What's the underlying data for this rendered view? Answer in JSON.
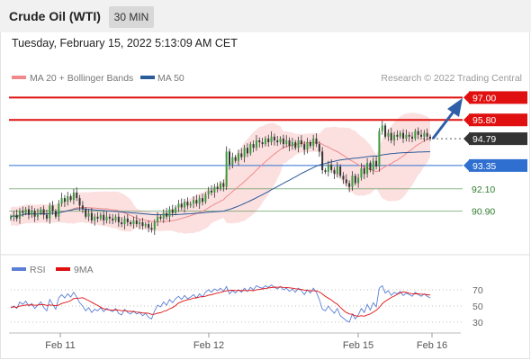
{
  "header": {
    "title": "Crude Oil (WTI)",
    "timeframe": "30 MIN"
  },
  "datetime": "Tuesday, February 15, 2022 5:13:09 AM CET",
  "legend": [
    {
      "label": "MA 20 + Bollinger Bands",
      "color": "#f08a8a"
    },
    {
      "label": "MA 50",
      "color": "#2c5b9a"
    }
  ],
  "watermark": "Research © 2022 Trading Central",
  "rsi_legend": [
    {
      "label": "RSI",
      "color": "#5b7fd6"
    },
    {
      "label": "9MA",
      "color": "#e01010"
    }
  ],
  "chart_data": {
    "type": "candlestick",
    "x_ticks": [
      "Feb 11",
      "Feb 12",
      "Feb 15",
      "Feb 16"
    ],
    "price_range": [
      88.8,
      97.6
    ],
    "last_price": 94.79,
    "levels": [
      {
        "value": 97.0,
        "label": "97.00",
        "kind": "resistance",
        "color": "#e01010"
      },
      {
        "value": 95.8,
        "label": "95.80",
        "kind": "resistance",
        "color": "#e01010"
      },
      {
        "value": 94.79,
        "label": "94.79",
        "kind": "last",
        "color": "#333333"
      },
      {
        "value": 93.35,
        "label": "93.35",
        "kind": "pivot",
        "color": "#2f6fd0"
      },
      {
        "value": 92.1,
        "label": "92.10",
        "kind": "support",
        "color": "#2f7f2f"
      },
      {
        "value": 90.9,
        "label": "90.90",
        "kind": "support",
        "color": "#2f7f2f"
      }
    ],
    "close": [
      90.6,
      90.7,
      90.5,
      90.9,
      90.8,
      91.0,
      90.7,
      90.9,
      90.6,
      90.8,
      91.0,
      90.7,
      90.5,
      91.2,
      90.9,
      90.6,
      91.3,
      91.6,
      91.4,
      91.7,
      91.5,
      91.9,
      91.6,
      91.2,
      91.0,
      90.6,
      90.8,
      90.4,
      90.6,
      90.5,
      90.7,
      90.4,
      90.6,
      90.5,
      90.4,
      90.6,
      90.3,
      90.2,
      90.5,
      90.3,
      90.2,
      90.4,
      90.2,
      90.3,
      90.1,
      90.2,
      90.0,
      89.9,
      90.3,
      90.6,
      90.5,
      90.8,
      90.6,
      91.0,
      90.8,
      91.1,
      91.3,
      91.1,
      91.4,
      91.2,
      91.3,
      91.5,
      91.3,
      91.6,
      91.4,
      91.8,
      92.0,
      91.9,
      92.2,
      92.1,
      92.4,
      92.2,
      94.1,
      93.4,
      93.8,
      93.6,
      94.0,
      93.8,
      94.3,
      94.0,
      94.5,
      94.3,
      94.7,
      94.6,
      94.5,
      94.8,
      94.6,
      94.9,
      94.7,
      94.6,
      94.8,
      94.5,
      94.7,
      94.4,
      94.6,
      94.3,
      94.7,
      94.5,
      94.2,
      94.6,
      94.4,
      94.8,
      94.5,
      94.1,
      93.1,
      93.0,
      93.4,
      93.1,
      92.9,
      93.3,
      92.8,
      92.6,
      92.4,
      92.2,
      92.8,
      92.4,
      92.7,
      93.2,
      92.9,
      93.5,
      93.1,
      93.6,
      93.3,
      95.2,
      95.5,
      94.9,
      95.1,
      94.7,
      95.0,
      94.9,
      95.1,
      94.8,
      95.0,
      94.9,
      94.8,
      95.2,
      95.0,
      94.9,
      95.1,
      94.9,
      94.79
    ],
    "open": [
      90.5,
      90.6,
      90.7,
      90.5,
      90.9,
      90.8,
      91.0,
      90.7,
      90.9,
      90.6,
      90.8,
      91.0,
      90.7,
      90.5,
      91.2,
      90.9,
      90.6,
      91.3,
      91.6,
      91.4,
      91.7,
      91.5,
      91.9,
      91.6,
      91.2,
      91.0,
      90.6,
      90.8,
      90.4,
      90.6,
      90.5,
      90.7,
      90.4,
      90.6,
      90.5,
      90.4,
      90.6,
      90.3,
      90.2,
      90.5,
      90.3,
      90.2,
      90.4,
      90.2,
      90.3,
      90.1,
      90.2,
      90.0,
      89.9,
      90.3,
      90.6,
      90.5,
      90.8,
      90.6,
      91.0,
      90.8,
      91.1,
      91.3,
      91.1,
      91.4,
      91.2,
      91.3,
      91.5,
      91.3,
      91.6,
      91.4,
      91.8,
      92.0,
      91.9,
      92.2,
      92.1,
      92.4,
      92.2,
      94.1,
      93.4,
      93.8,
      93.6,
      94.0,
      93.8,
      94.3,
      94.0,
      94.5,
      94.3,
      94.7,
      94.6,
      94.5,
      94.8,
      94.6,
      94.9,
      94.7,
      94.6,
      94.8,
      94.5,
      94.7,
      94.4,
      94.6,
      94.3,
      94.7,
      94.5,
      94.2,
      94.6,
      94.4,
      94.8,
      94.5,
      94.1,
      93.1,
      93.0,
      93.4,
      93.1,
      92.9,
      93.3,
      92.8,
      92.6,
      92.4,
      92.2,
      92.8,
      92.4,
      92.7,
      93.2,
      92.9,
      93.5,
      93.1,
      93.6,
      93.3,
      95.2,
      95.5,
      94.9,
      95.1,
      94.7,
      95.0,
      94.9,
      95.1,
      94.8,
      95.0,
      94.9,
      94.8,
      95.2,
      95.0,
      94.9,
      95.1,
      94.9
    ],
    "rsi": [
      48,
      50,
      47,
      55,
      52,
      56,
      50,
      53,
      47,
      51,
      55,
      48,
      44,
      58,
      52,
      46,
      60,
      64,
      60,
      65,
      61,
      67,
      61,
      54,
      50,
      44,
      48,
      42,
      46,
      44,
      48,
      43,
      47,
      45,
      43,
      47,
      41,
      39,
      46,
      42,
      40,
      44,
      40,
      42,
      38,
      41,
      36,
      34,
      44,
      51,
      49,
      55,
      51,
      58,
      54,
      59,
      62,
      58,
      63,
      59,
      61,
      64,
      60,
      65,
      61,
      67,
      70,
      67,
      71,
      69,
      72,
      68,
      74,
      65,
      69,
      66,
      70,
      67,
      72,
      68,
      73,
      70,
      75,
      73,
      72,
      75,
      73,
      76,
      73,
      71,
      74,
      70,
      72,
      68,
      71,
      67,
      72,
      69,
      64,
      70,
      66,
      72,
      67,
      58,
      46,
      44,
      50,
      45,
      41,
      47,
      38,
      35,
      32,
      30,
      40,
      34,
      39,
      47,
      42,
      52,
      45,
      54,
      49,
      72,
      75,
      66,
      69,
      63,
      67,
      65,
      68,
      63,
      66,
      64,
      62,
      67,
      64,
      62,
      65,
      62,
      60
    ],
    "rsi_levels": [
      70,
      50,
      30
    ]
  }
}
